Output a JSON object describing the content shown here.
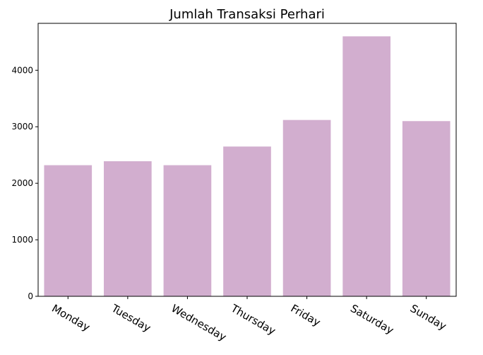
{
  "chart_data": {
    "type": "bar",
    "title": "Jumlah Transaksi Perhari",
    "xlabel": "",
    "ylabel": "",
    "categories": [
      "Monday",
      "Tuesday",
      "Wednesday",
      "Thursday",
      "Friday",
      "Saturday",
      "Sunday"
    ],
    "values": [
      2320,
      2390,
      2320,
      2650,
      3120,
      4600,
      3100
    ],
    "ylim": [
      0,
      4830
    ],
    "yticks": [
      0,
      1000,
      2000,
      3000,
      4000
    ],
    "bar_color": "#d2aecf",
    "grid": false,
    "legend": "none",
    "xtick_rotation": "-30"
  }
}
